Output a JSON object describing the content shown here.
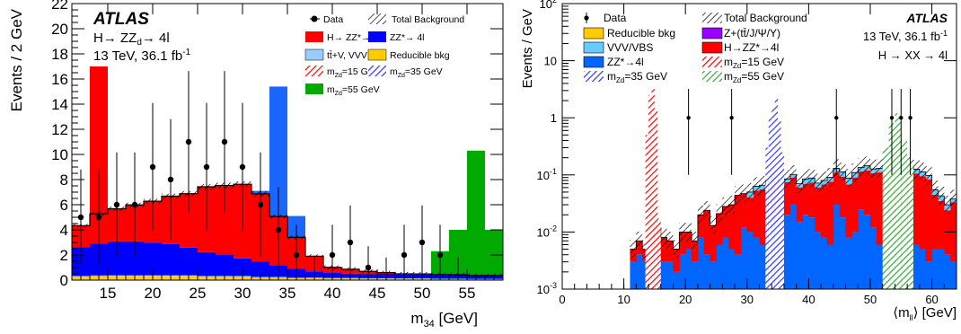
{
  "colors": {
    "signal_red": "#ff0000",
    "zz_blue": "#0000ff",
    "ttv_lightblue": "#99ccff",
    "reducible_yellow": "#ffcc00",
    "zd55_green": "#00aa00",
    "vvv_cyan": "#66ccff",
    "zz_blue_right": "#0066ff",
    "zplus_purple": "#9900ff",
    "hatch_blue": "#3333ff",
    "hatch_green": "#33aa33"
  },
  "chart_data": [
    {
      "type": "bar",
      "stacked_histogram": true,
      "xlabel": "m34 [GeV]",
      "ylabel": "Events / 2 GeV",
      "xlim": [
        11,
        59
      ],
      "ylim": [
        0,
        22
      ],
      "xticks": [
        "15",
        "20",
        "25",
        "30",
        "35",
        "40",
        "45",
        "50",
        "55"
      ],
      "yticks": [
        "0",
        "2",
        "4",
        "6",
        "8",
        "10",
        "12",
        "14",
        "16",
        "18",
        "20",
        "22"
      ],
      "atlas": "ATLAS",
      "annotations": [
        "H→ ZZd→ 4l",
        "13 TeV, 36.1 fb-1"
      ],
      "legend": [
        "Data",
        "Total Background",
        "H→ ZZ*→ 4l",
        "ZZ*→ 4l",
        "tt̄+V, VVV",
        "Reducible bkg",
        "mZd=15 GeV",
        "mZd=35 GeV",
        "mZd=55 GeV"
      ],
      "bin_edges": [
        11,
        13,
        15,
        17,
        19,
        21,
        23,
        25,
        27,
        29,
        31,
        33,
        35,
        37,
        39,
        41,
        43,
        45,
        47,
        49,
        51,
        53,
        55,
        57,
        59
      ],
      "series": [
        {
          "name": "Reducible bkg",
          "values": [
            0.25,
            0.3,
            0.3,
            0.3,
            0.3,
            0.3,
            0.3,
            0.25,
            0.25,
            0.25,
            0.2,
            0.2,
            0.15,
            0.15,
            0.12,
            0.12,
            0.1,
            0.1,
            0.1,
            0.1,
            0.08,
            0.08,
            0.06,
            0.06
          ]
        },
        {
          "name": "tt̄+V, VVV",
          "values": [
            0.08,
            0.08,
            0.08,
            0.08,
            0.08,
            0.08,
            0.08,
            0.08,
            0.08,
            0.08,
            0.06,
            0.06,
            0.05,
            0.05,
            0.05,
            0.05,
            0.05,
            0.05,
            0.04,
            0.04,
            0.04,
            0.04,
            0.04,
            0.04
          ]
        },
        {
          "name": "ZZ*→ 4l",
          "values": [
            2.3,
            2.5,
            2.7,
            2.7,
            2.6,
            2.5,
            2.2,
            1.9,
            1.7,
            1.4,
            1.2,
            0.9,
            0.7,
            0.5,
            0.4,
            0.35,
            0.35,
            0.35,
            0.3,
            0.3,
            0.3,
            0.3,
            0.25,
            0.25
          ]
        },
        {
          "name": "H→ ZZ*→ 4l",
          "values": [
            1.7,
            2.4,
            2.6,
            2.9,
            3.3,
            3.8,
            4.3,
            5.2,
            5.5,
            5.9,
            5.4,
            3.9,
            2.5,
            1.2,
            0.45,
            0.35,
            0.2,
            0.1,
            0.06,
            0.05,
            0.03,
            0.02,
            0.02,
            0.02
          ]
        }
      ],
      "signals": [
        {
          "name": "mZd=15 GeV",
          "bins": [
            [
              13,
              15,
              17.0
            ]
          ]
        },
        {
          "name": "mZd=35 GeV",
          "bins": [
            [
              31,
              33,
              7.1
            ],
            [
              33,
              35,
              15.4
            ],
            [
              35,
              37,
              5.1
            ]
          ]
        },
        {
          "name": "mZd=55 GeV",
          "bins": [
            [
              51,
              53,
              2.3
            ],
            [
              53,
              55,
              4.0
            ],
            [
              55,
              57,
              10.3
            ],
            [
              57,
              59,
              4.0
            ]
          ]
        }
      ],
      "data_points": {
        "x": [
          12,
          14,
          16,
          18,
          20,
          22,
          24,
          26,
          28,
          30,
          32,
          34,
          36,
          38,
          40,
          42,
          44,
          46,
          48,
          50,
          52,
          54
        ],
        "y": [
          5,
          5,
          6,
          6,
          9,
          8,
          11,
          9,
          11,
          9,
          6,
          4,
          2,
          0,
          2,
          3,
          1,
          0,
          2,
          3,
          2,
          0
        ]
      }
    },
    {
      "type": "bar",
      "stacked_histogram": true,
      "log_y": true,
      "xlabel": "⟨mll⟩ [GeV]",
      "ylabel": "Events / GeV",
      "xlim": [
        0,
        64
      ],
      "ylim": [
        0.001,
        100
      ],
      "xticks": [
        "0",
        "10",
        "20",
        "30",
        "40",
        "50",
        "60"
      ],
      "yticks": [
        "10-3",
        "10-2",
        "10-1",
        "1",
        "10",
        "102"
      ],
      "atlas": "ATLAS",
      "annotations": [
        "13 TeV, 36.1 fb-1",
        "H → XX → 4l"
      ],
      "legend": [
        "Data",
        "Total Background",
        "Reducible bkg",
        "Z+(tt̄/J/Ψ/Υ)",
        "VVV/VBS",
        "H→ZZ*→4l",
        "ZZ*→4l",
        "mZd=15 GeV",
        "mZd=35 GeV",
        "mZd=55 GeV"
      ],
      "bin_edges": [
        11,
        12,
        13,
        14,
        15,
        16,
        17,
        18,
        19,
        20,
        21,
        22,
        23,
        24,
        25,
        26,
        27,
        28,
        29,
        30,
        31,
        32,
        33,
        34,
        35,
        36,
        37,
        38,
        39,
        40,
        41,
        42,
        43,
        44,
        45,
        46,
        47,
        48,
        49,
        50,
        51,
        52,
        53,
        54,
        55,
        56,
        57,
        58,
        59,
        60,
        61,
        62,
        63,
        64
      ],
      "series": [
        {
          "name": "ZZ*→4l",
          "values": [
            0.003,
            0.004,
            0.003,
            0.005,
            0.004,
            0.003,
            0.003,
            0.002,
            0.004,
            0.005,
            0.003,
            0.008,
            0.004,
            0.003,
            0.006,
            0.008,
            0.005,
            0.004,
            0.012,
            0.01,
            0.008,
            0.006,
            0.012,
            0.02,
            0.015,
            0.02,
            0.03,
            0.015,
            0.02,
            0.018,
            0.01,
            0.008,
            0.006,
            0.03,
            0.018,
            0.008,
            0.01,
            0.025,
            0.02,
            0.012,
            0.006,
            0.01,
            0.008,
            0.015,
            0.01,
            0.02,
            0.006,
            0.005,
            0.003,
            0.005,
            0.005,
            0.004,
            0.003
          ]
        },
        {
          "name": "H→ZZ*→4l",
          "values": [
            0.002,
            0.003,
            0.002,
            0.004,
            0.008,
            0.005,
            0.004,
            0.003,
            0.006,
            0.005,
            0.004,
            0.012,
            0.02,
            0.01,
            0.015,
            0.02,
            0.025,
            0.04,
            0.035,
            0.03,
            0.045,
            0.05,
            0.055,
            0.06,
            0.05,
            0.055,
            0.06,
            0.045,
            0.05,
            0.055,
            0.05,
            0.06,
            0.07,
            0.08,
            0.075,
            0.06,
            0.08,
            0.09,
            0.1,
            0.095,
            0.105,
            0.11,
            0.1,
            0.12,
            0.09,
            0.1,
            0.1,
            0.09,
            0.08,
            0.04,
            0.03,
            0.02,
            0.03
          ]
        },
        {
          "name": "VVV/VBS",
          "values": [
            0.0,
            0.0,
            0.0,
            0.0,
            0.0,
            0.0,
            0.0,
            0.0,
            0.0,
            0.0,
            0.0,
            0.0,
            0.0,
            0.0,
            0.0,
            0.0,
            0.0,
            0.0,
            0.0,
            0.01,
            0.01,
            0.01,
            0.015,
            0.015,
            0.01,
            0.01,
            0.012,
            0.01,
            0.015,
            0.015,
            0.012,
            0.012,
            0.015,
            0.02,
            0.02,
            0.02,
            0.02,
            0.02,
            0.025,
            0.02,
            0.02,
            0.025,
            0.025,
            0.025,
            0.02,
            0.02,
            0.02,
            0.018,
            0.015,
            0.01,
            0.008,
            0.006,
            0.005
          ]
        }
      ],
      "signals": [
        {
          "name": "mZd=15 GeV",
          "bins": [
            [
              13.5,
              14.0,
              0.5
            ],
            [
              14.0,
              14.5,
              2.5
            ],
            [
              14.5,
              15.0,
              3.2
            ],
            [
              15.0,
              15.5,
              1.3
            ],
            [
              15.5,
              16.0,
              0.015
            ]
          ]
        },
        {
          "name": "mZd=35 GeV",
          "bins": [
            [
              33.0,
              33.5,
              0.3
            ],
            [
              33.5,
              34.0,
              1.0
            ],
            [
              34.0,
              34.5,
              1.5
            ],
            [
              34.5,
              35.0,
              2.2
            ],
            [
              35.0,
              35.5,
              0.9
            ],
            [
              35.5,
              36.0,
              0.25
            ]
          ]
        },
        {
          "name": "mZd=55 GeV",
          "bins": [
            [
              52.0,
              53.0,
              0.3
            ],
            [
              53.0,
              54.0,
              0.8
            ],
            [
              54.0,
              55.0,
              1.2
            ],
            [
              55.0,
              56.0,
              0.4
            ],
            [
              56.0,
              57.0,
              0.15
            ]
          ]
        }
      ],
      "data_points": {
        "x": [
          20.5,
          27.5,
          44.5,
          53.5,
          55.0,
          56.5
        ],
        "y": [
          1,
          1,
          1,
          1,
          1,
          1
        ]
      }
    }
  ]
}
